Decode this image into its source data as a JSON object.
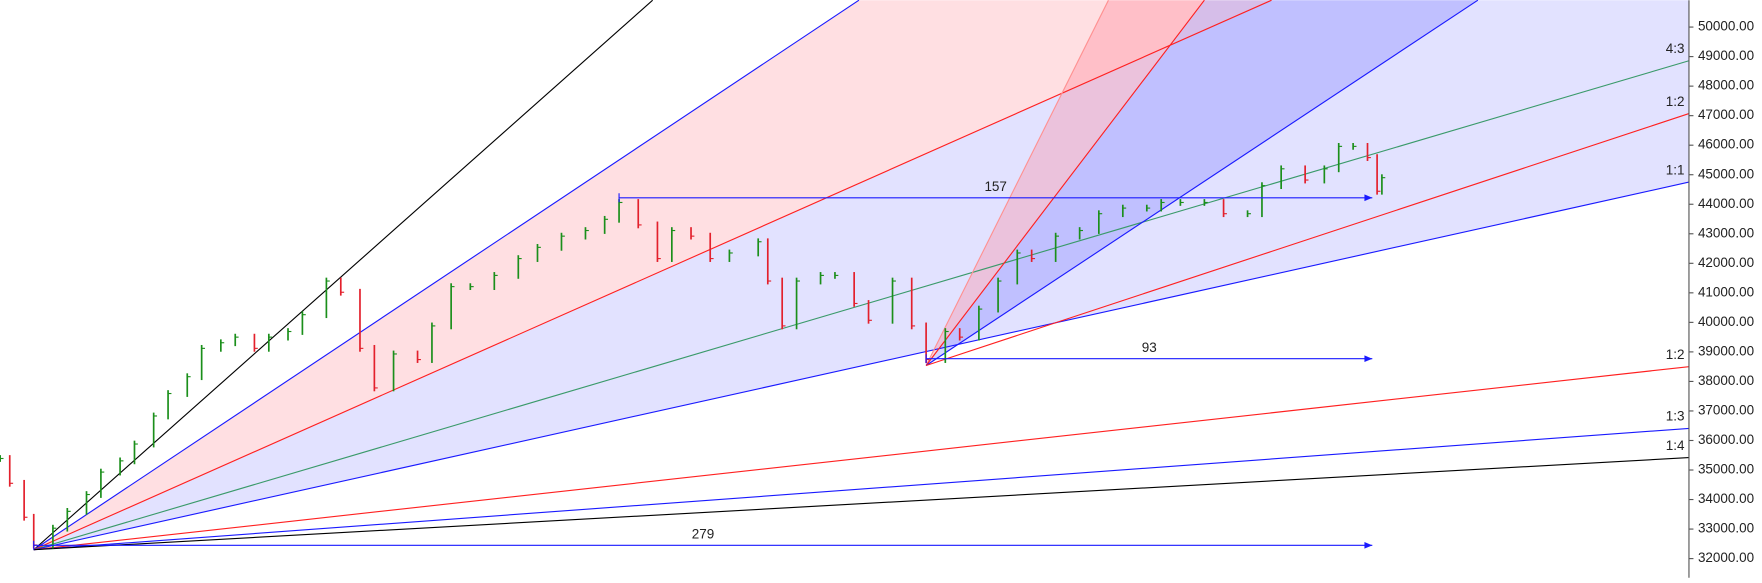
{
  "chart_data": {
    "type": "price-bars",
    "x": [
      -7,
      -5,
      -2,
      0,
      4,
      7,
      11,
      14,
      18,
      21,
      25,
      28,
      32,
      35,
      39,
      42,
      46,
      49,
      53,
      56,
      61,
      64,
      68,
      71,
      75,
      80,
      83,
      87,
      91,
      96,
      101,
      105,
      110,
      115,
      119,
      122,
      126,
      130,
      133,
      137,
      141,
      145,
      151,
      153,
      156,
      159,
      164,
      167,
      171,
      174,
      179,
      183,
      186,
      190,
      193,
      197,
      201,
      205,
      208,
      213,
      218,
      222,
      227,
      232,
      235,
      239,
      244,
      248,
      253,
      256,
      260,
      265,
      269,
      272,
      275,
      278,
      280,
      281
    ],
    "values": [
      35390,
      34550,
      33400,
      32460,
      33030,
      33600,
      34170,
      34930,
      35310,
      35880,
      36830,
      37590,
      38160,
      39120,
      39310,
      39500,
      39120,
      39500,
      39690,
      40260,
      41400,
      41020,
      39120,
      37780,
      38930,
      38740,
      39880,
      41210,
      41210,
      41590,
      42160,
      42540,
      42920,
      43110,
      43490,
      44060,
      43300,
      42160,
      43110,
      42920,
      42160,
      42350,
      42730,
      41400,
      39880,
      41400,
      41590,
      41590,
      40640,
      40070,
      41400,
      39880,
      38740,
      39690,
      39500,
      40450,
      41400,
      42350,
      42160,
      42920,
      43110,
      43680,
      43870,
      43870,
      44060,
      44060,
      44060,
      43680,
      43680,
      44630,
      45200,
      44820,
      45200,
      45960,
      45960,
      45580,
      44440,
      44900
    ],
    "up_color": "#1b8f1b",
    "down_color": "#e3202c",
    "xlim": [
      -7.03,
      345
    ],
    "ylim": [
      31350,
      50910
    ],
    "yticks": [
      {
        "value": 32000,
        "label": "32000.00"
      },
      {
        "value": 33000,
        "label": "33000.00"
      },
      {
        "value": 34000,
        "label": "34000.00"
      },
      {
        "value": 35000,
        "label": "35000.00"
      },
      {
        "value": 36000,
        "label": "36000.00"
      },
      {
        "value": 37000,
        "label": "37000.00"
      },
      {
        "value": 38000,
        "label": "38000.00"
      },
      {
        "value": 39000,
        "label": "39000.00"
      },
      {
        "value": 40000,
        "label": "40000.00"
      },
      {
        "value": 41000,
        "label": "41000.00"
      },
      {
        "value": 42000,
        "label": "42000.00"
      },
      {
        "value": 43000,
        "label": "43000.00"
      },
      {
        "value": 44000,
        "label": "44000.00"
      },
      {
        "value": 45000,
        "label": "45000.00"
      },
      {
        "value": 46000,
        "label": "46000.00"
      },
      {
        "value": 47000,
        "label": "47000.00"
      },
      {
        "value": 48000,
        "label": "48000.00"
      },
      {
        "value": 49000,
        "label": "49000.00"
      },
      {
        "value": 50000,
        "label": "50000.00"
      }
    ],
    "fans": [
      {
        "origin": [
          0,
          32300
        ],
        "lines": [
          {
            "to": [
              129,
              50910
            ],
            "color": "#000000"
          },
          {
            "to": [
              172,
              50910
            ],
            "color": "#1a1aff",
            "fill": "rgba(255,150,160,0.3)"
          },
          {
            "to": [
              258,
              50910
            ],
            "color": "#ff2020",
            "fill": "rgba(140,140,255,0.25)"
          },
          {
            "to": [
              345,
              48860
            ],
            "color": "#3a9a6a",
            "label": "4:3",
            "fill": "rgba(140,140,255,0.25)"
          },
          {
            "to": [
              345,
              44750
            ],
            "color": "#1a1aff",
            "label": "1:1"
          },
          {
            "to": [
              345,
              38500
            ],
            "color": "#ff2020",
            "label": "1:2"
          },
          {
            "to": [
              345,
              36410
            ],
            "color": "#1a1aff",
            "label": "1:3"
          },
          {
            "to": [
              345,
              35420
            ],
            "color": "#000000",
            "label": "1:4"
          }
        ]
      },
      {
        "origin": [
          186,
          38540
        ],
        "lines": [
          {
            "to": [
              224,
              50910
            ],
            "color": "#ff9090",
            "fill": "rgba(255,120,140,0.3)"
          },
          {
            "to": [
              244,
              50910
            ],
            "color": "#ff2020",
            "fill": "rgba(90,90,255,0.25)"
          },
          {
            "to": [
              301,
              50910
            ],
            "color": "#1a1aff"
          },
          {
            "to": [
              345,
              47070
            ],
            "color": "#ff2020",
            "label": "1:2"
          }
        ]
      }
    ],
    "measures": [
      {
        "from": [
          0,
          32450
        ],
        "to": [
          279,
          32450
        ],
        "label": "279"
      },
      {
        "from": [
          122,
          44220
        ],
        "to": [
          279,
          44220
        ],
        "label": "157"
      },
      {
        "from": [
          186,
          38770
        ],
        "to": [
          279,
          38770
        ],
        "label": "93"
      }
    ],
    "measure_color": "#1a1aff"
  }
}
